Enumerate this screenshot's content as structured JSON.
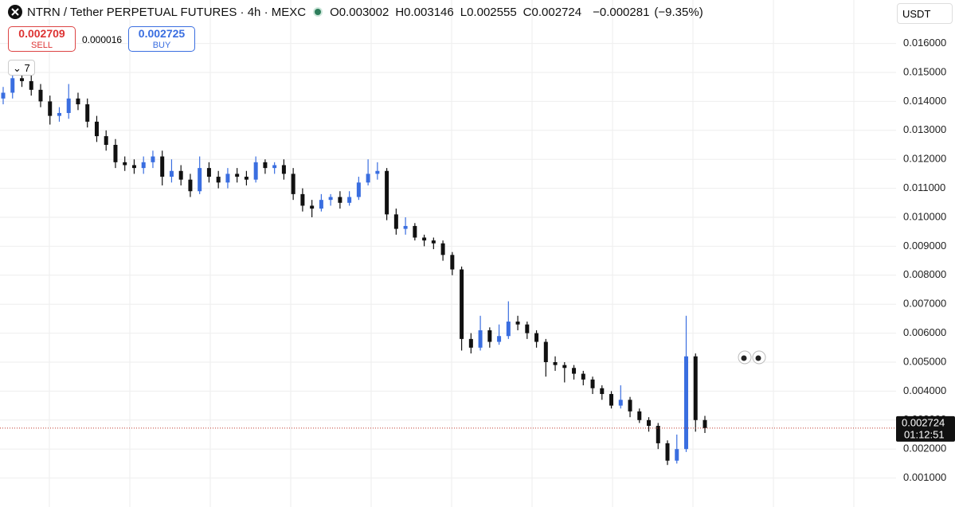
{
  "header": {
    "symbol": "NTRN / Tether PERPETUAL FUTURES · 4h · MEXC",
    "ohlc": [
      {
        "key": "O",
        "value": "0.003002"
      },
      {
        "key": "H",
        "value": "0.003146"
      },
      {
        "key": "L",
        "value": "0.002555"
      },
      {
        "key": "C",
        "value": "0.002724"
      }
    ],
    "change": "−0.000281",
    "change_pct": "(−9.35%)"
  },
  "trade": {
    "sell_price": "0.002709",
    "sell_label": "SELL",
    "spread": "0.000016",
    "buy_price": "0.002725",
    "buy_label": "BUY"
  },
  "indicators_count": "7",
  "currency": "USDT",
  "countdown": "01:12:51",
  "chart_data": {
    "type": "candlestick",
    "up_color": "#3a6ee0",
    "down_color": "#111111",
    "last_price": 0.002724,
    "last_price_color": "#c0392b",
    "ylim": [
      0,
      0.0175
    ],
    "yticks": [
      {
        "value": 0.001,
        "label": "0.001000"
      },
      {
        "value": 0.002,
        "label": "0.002000"
      },
      {
        "value": 0.003,
        "label": "0.003000"
      },
      {
        "value": 0.004,
        "label": "0.004000"
      },
      {
        "value": 0.005,
        "label": "0.005000"
      },
      {
        "value": 0.006,
        "label": "0.006000"
      },
      {
        "value": 0.007,
        "label": "0.007000"
      },
      {
        "value": 0.008,
        "label": "0.008000"
      },
      {
        "value": 0.009,
        "label": "0.009000"
      },
      {
        "value": 0.01,
        "label": "0.010000"
      },
      {
        "value": 0.011,
        "label": "0.011000"
      },
      {
        "value": 0.012,
        "label": "0.012000"
      },
      {
        "value": 0.013,
        "label": "0.013000"
      },
      {
        "value": 0.014,
        "label": "0.014000"
      },
      {
        "value": 0.015,
        "label": "0.015000"
      },
      {
        "value": 0.016,
        "label": "0.016000"
      }
    ],
    "grid": true,
    "ohlc": [
      [
        0.0141,
        0.0145,
        0.0139,
        0.0143
      ],
      [
        0.0143,
        0.015,
        0.0141,
        0.0148
      ],
      [
        0.0148,
        0.015,
        0.0145,
        0.0147
      ],
      [
        0.0147,
        0.0149,
        0.0142,
        0.0144
      ],
      [
        0.0144,
        0.0146,
        0.0138,
        0.014
      ],
      [
        0.014,
        0.0142,
        0.0132,
        0.0135
      ],
      [
        0.0135,
        0.0138,
        0.0133,
        0.0136
      ],
      [
        0.0136,
        0.0146,
        0.0134,
        0.0141
      ],
      [
        0.0141,
        0.0143,
        0.0137,
        0.0139
      ],
      [
        0.0139,
        0.0141,
        0.0131,
        0.0133
      ],
      [
        0.0133,
        0.0135,
        0.0126,
        0.0128
      ],
      [
        0.0128,
        0.013,
        0.0123,
        0.0125
      ],
      [
        0.0125,
        0.0127,
        0.0117,
        0.0119
      ],
      [
        0.0119,
        0.0121,
        0.0116,
        0.0118
      ],
      [
        0.0118,
        0.012,
        0.0115,
        0.0117
      ],
      [
        0.0117,
        0.0121,
        0.0115,
        0.0119
      ],
      [
        0.0119,
        0.0123,
        0.0117,
        0.0121
      ],
      [
        0.0121,
        0.0123,
        0.0111,
        0.0114
      ],
      [
        0.0114,
        0.012,
        0.0112,
        0.0116
      ],
      [
        0.0116,
        0.0118,
        0.0111,
        0.0113
      ],
      [
        0.0113,
        0.0115,
        0.0107,
        0.0109
      ],
      [
        0.0109,
        0.0121,
        0.0108,
        0.0117
      ],
      [
        0.0117,
        0.0119,
        0.0112,
        0.0114
      ],
      [
        0.0114,
        0.0116,
        0.011,
        0.0112
      ],
      [
        0.0112,
        0.0117,
        0.011,
        0.0115
      ],
      [
        0.0115,
        0.0117,
        0.0112,
        0.0114
      ],
      [
        0.0114,
        0.0116,
        0.0111,
        0.0113
      ],
      [
        0.0113,
        0.0121,
        0.0112,
        0.0119
      ],
      [
        0.0119,
        0.012,
        0.0115,
        0.0117
      ],
      [
        0.0117,
        0.0119,
        0.0115,
        0.0118
      ],
      [
        0.0118,
        0.012,
        0.0113,
        0.0115
      ],
      [
        0.0115,
        0.0117,
        0.0106,
        0.0108
      ],
      [
        0.0108,
        0.011,
        0.0102,
        0.0104
      ],
      [
        0.0104,
        0.0106,
        0.01,
        0.0103
      ],
      [
        0.0103,
        0.0108,
        0.0102,
        0.0106
      ],
      [
        0.0106,
        0.0108,
        0.0104,
        0.0107
      ],
      [
        0.0107,
        0.0109,
        0.0103,
        0.0105
      ],
      [
        0.0105,
        0.0109,
        0.0104,
        0.0107
      ],
      [
        0.0107,
        0.0114,
        0.0106,
        0.0112
      ],
      [
        0.0112,
        0.012,
        0.0111,
        0.0115
      ],
      [
        0.0115,
        0.0119,
        0.0113,
        0.0116
      ],
      [
        0.0116,
        0.0117,
        0.0099,
        0.0101
      ],
      [
        0.0101,
        0.0103,
        0.0094,
        0.0096
      ],
      [
        0.0096,
        0.01,
        0.0094,
        0.0097
      ],
      [
        0.0097,
        0.0098,
        0.0092,
        0.0093
      ],
      [
        0.0093,
        0.0094,
        0.009,
        0.0092
      ],
      [
        0.0092,
        0.0093,
        0.0089,
        0.0091
      ],
      [
        0.0091,
        0.0092,
        0.0085,
        0.0087
      ],
      [
        0.0087,
        0.0088,
        0.008,
        0.0082
      ],
      [
        0.0082,
        0.0083,
        0.0054,
        0.0058
      ],
      [
        0.0058,
        0.006,
        0.0053,
        0.0055
      ],
      [
        0.0055,
        0.0066,
        0.0054,
        0.0061
      ],
      [
        0.0061,
        0.0062,
        0.0055,
        0.0057
      ],
      [
        0.0057,
        0.0063,
        0.0056,
        0.0059
      ],
      [
        0.0059,
        0.0071,
        0.0058,
        0.0064
      ],
      [
        0.0064,
        0.0066,
        0.0061,
        0.0063
      ],
      [
        0.0063,
        0.0064,
        0.0058,
        0.006
      ],
      [
        0.006,
        0.0061,
        0.0055,
        0.0057
      ],
      [
        0.0057,
        0.0058,
        0.0045,
        0.005
      ],
      [
        0.005,
        0.0052,
        0.0047,
        0.0049
      ],
      [
        0.0049,
        0.005,
        0.0043,
        0.0048
      ],
      [
        0.0048,
        0.0049,
        0.0044,
        0.0046
      ],
      [
        0.0046,
        0.0047,
        0.0042,
        0.0044
      ],
      [
        0.0044,
        0.0045,
        0.0039,
        0.0041
      ],
      [
        0.0041,
        0.0042,
        0.0037,
        0.0039
      ],
      [
        0.0039,
        0.004,
        0.0034,
        0.0035
      ],
      [
        0.0035,
        0.0042,
        0.0034,
        0.0037
      ],
      [
        0.0037,
        0.0038,
        0.0031,
        0.0033
      ],
      [
        0.0033,
        0.0034,
        0.0029,
        0.003
      ],
      [
        0.003,
        0.0031,
        0.0026,
        0.0028
      ],
      [
        0.0028,
        0.0029,
        0.002,
        0.0022
      ],
      [
        0.0022,
        0.0023,
        0.00145,
        0.0016
      ],
      [
        0.0016,
        0.0025,
        0.0015,
        0.002
      ],
      [
        0.002,
        0.0066,
        0.0019,
        0.0052
      ],
      [
        0.0052,
        0.0053,
        0.0026,
        0.003
      ],
      [
        0.003002,
        0.003146,
        0.002555,
        0.002724
      ]
    ]
  }
}
